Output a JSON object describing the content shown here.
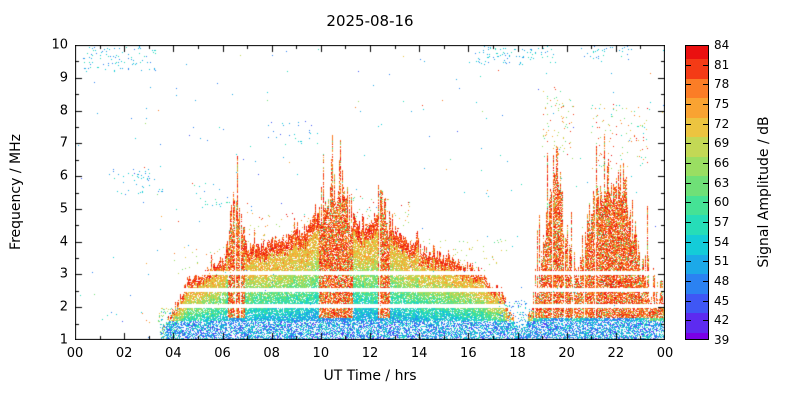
{
  "chart_data": {
    "type": "heatmap",
    "title": "2025-08-16",
    "xlabel": "UT Time / hrs",
    "ylabel": "Frequency / MHz",
    "x_range": [
      0,
      24
    ],
    "y_range": [
      1,
      10
    ],
    "x_tick_values": [
      0,
      2,
      4,
      6,
      8,
      10,
      12,
      14,
      16,
      18,
      20,
      22,
      24
    ],
    "x_tick_labels": [
      "00",
      "02",
      "04",
      "06",
      "08",
      "10",
      "12",
      "14",
      "16",
      "18",
      "20",
      "22",
      "00"
    ],
    "y_tick_values": [
      1,
      2,
      3,
      4,
      5,
      6,
      7,
      8,
      9,
      10
    ],
    "grid": false,
    "background": "#ffffff",
    "colorbar": {
      "label": "Signal Amplitude / dB",
      "min": 39,
      "max": 84,
      "tick_values": [
        39,
        42,
        45,
        48,
        51,
        54,
        57,
        60,
        63,
        66,
        69,
        72,
        75,
        78,
        81,
        84
      ],
      "stops": [
        "#7a00e6",
        "#5d2bf0",
        "#3f57f5",
        "#2b82f2",
        "#1ca9e8",
        "#14ccd8",
        "#26ddb8",
        "#45e295",
        "#6fe077",
        "#9ade62",
        "#c3d855",
        "#ecc440",
        "#f9a332",
        "#fb7d26",
        "#f43b16",
        "#ea1010"
      ]
    },
    "envelope_max_freq": [
      [
        0,
        0
      ],
      [
        3.4,
        0
      ],
      [
        3.5,
        1.3
      ],
      [
        3.8,
        1.7
      ],
      [
        4.2,
        2.2
      ],
      [
        4.6,
        2.9
      ],
      [
        5.0,
        3.0
      ],
      [
        5.4,
        3.1
      ],
      [
        5.8,
        3.3
      ],
      [
        6.1,
        3.6
      ],
      [
        6.3,
        4.6
      ],
      [
        6.5,
        5.0
      ],
      [
        6.7,
        4.8
      ],
      [
        6.9,
        3.9
      ],
      [
        7.2,
        3.8
      ],
      [
        7.6,
        3.9
      ],
      [
        8.0,
        4.0
      ],
      [
        8.4,
        4.1
      ],
      [
        8.8,
        4.2
      ],
      [
        9.2,
        4.3
      ],
      [
        9.6,
        4.6
      ],
      [
        9.9,
        4.9
      ],
      [
        10.1,
        5.2
      ],
      [
        10.3,
        4.9
      ],
      [
        10.5,
        5.4
      ],
      [
        10.8,
        5.9
      ],
      [
        11.0,
        5.6
      ],
      [
        11.2,
        4.9
      ],
      [
        11.5,
        4.5
      ],
      [
        11.8,
        4.4
      ],
      [
        12.1,
        4.6
      ],
      [
        12.4,
        5.2
      ],
      [
        12.6,
        5.0
      ],
      [
        12.9,
        4.4
      ],
      [
        13.3,
        4.1
      ],
      [
        13.7,
        3.9
      ],
      [
        14.2,
        3.7
      ],
      [
        14.7,
        3.6
      ],
      [
        15.2,
        3.5
      ],
      [
        15.7,
        3.3
      ],
      [
        16.2,
        3.2
      ],
      [
        16.6,
        3.0
      ],
      [
        17.0,
        2.7
      ],
      [
        17.4,
        2.3
      ],
      [
        17.7,
        1.8
      ],
      [
        18.0,
        1.4
      ],
      [
        18.3,
        1.3
      ],
      [
        18.6,
        2.2
      ],
      [
        18.9,
        3.2
      ],
      [
        19.2,
        4.4
      ],
      [
        19.45,
        6.3
      ],
      [
        19.6,
        6.5
      ],
      [
        19.8,
        5.2
      ],
      [
        20.0,
        4.0
      ],
      [
        20.2,
        3.0
      ],
      [
        20.5,
        3.3
      ],
      [
        20.8,
        4.2
      ],
      [
        21.0,
        5.0
      ],
      [
        21.2,
        5.6
      ],
      [
        21.45,
        5.2
      ],
      [
        21.7,
        5.9
      ],
      [
        21.9,
        5.4
      ],
      [
        22.1,
        5.7
      ],
      [
        22.3,
        6.2
      ],
      [
        22.5,
        5.0
      ],
      [
        22.8,
        4.2
      ],
      [
        23.1,
        3.4
      ],
      [
        23.4,
        2.7
      ],
      [
        23.7,
        2.3
      ],
      [
        24,
        2.1
      ]
    ],
    "strong_red_intervals": [
      [
        6.2,
        6.9
      ],
      [
        9.9,
        11.3
      ],
      [
        12.3,
        12.8
      ],
      [
        18.6,
        23.9
      ]
    ],
    "gap_lines_mhz": [
      2.05,
      2.55,
      3.05
    ],
    "noise_patches": [
      {
        "t": [
          0.3,
          3.3
        ],
        "f": [
          9.2,
          10.0
        ],
        "density": 0.05,
        "amp": [
          48,
          57
        ]
      },
      {
        "t": [
          16.3,
          19.6
        ],
        "f": [
          9.4,
          10.0
        ],
        "density": 0.06,
        "amp": [
          48,
          57
        ]
      },
      {
        "t": [
          20.6,
          22.7
        ],
        "f": [
          9.5,
          10.0
        ],
        "density": 0.04,
        "amp": [
          48,
          57
        ]
      },
      {
        "t": [
          1.5,
          3.6
        ],
        "f": [
          5.4,
          6.3
        ],
        "density": 0.03,
        "amp": [
          48,
          57
        ]
      },
      {
        "t": [
          4.8,
          6.3
        ],
        "f": [
          5.0,
          5.8
        ],
        "density": 0.025,
        "amp": [
          48,
          60
        ]
      },
      {
        "t": [
          7.8,
          9.7
        ],
        "f": [
          6.9,
          7.7
        ],
        "density": 0.02,
        "amp": [
          45,
          57
        ]
      },
      {
        "t": [
          6.9,
          10.1
        ],
        "f": [
          4.0,
          4.9
        ],
        "density": 0.02,
        "amp": [
          66,
          84
        ]
      },
      {
        "t": [
          11.3,
          13.7
        ],
        "f": [
          4.4,
          5.4
        ],
        "density": 0.025,
        "amp": [
          60,
          84
        ]
      },
      {
        "t": [
          19.0,
          20.3
        ],
        "f": [
          6.5,
          8.7
        ],
        "density": 0.035,
        "amp": [
          60,
          84
        ]
      },
      {
        "t": [
          21.0,
          23.3
        ],
        "f": [
          6.2,
          8.2
        ],
        "density": 0.03,
        "amp": [
          54,
          84
        ]
      },
      {
        "t": [
          13.6,
          17.6
        ],
        "f": [
          3.1,
          4.1
        ],
        "density": 0.02,
        "amp": [
          60,
          75
        ]
      },
      {
        "t": [
          4.0,
          7.0
        ],
        "f": [
          3.0,
          3.9
        ],
        "density": 0.02,
        "amp": [
          63,
          80
        ]
      },
      {
        "t": [
          17.2,
          18.6
        ],
        "f": [
          1.0,
          2.2
        ],
        "density": 0.12,
        "amp": [
          45,
          60
        ]
      },
      {
        "t": [
          3.4,
          4.2
        ],
        "f": [
          1.0,
          2.0
        ],
        "density": 0.15,
        "amp": [
          48,
          75
        ]
      }
    ]
  }
}
